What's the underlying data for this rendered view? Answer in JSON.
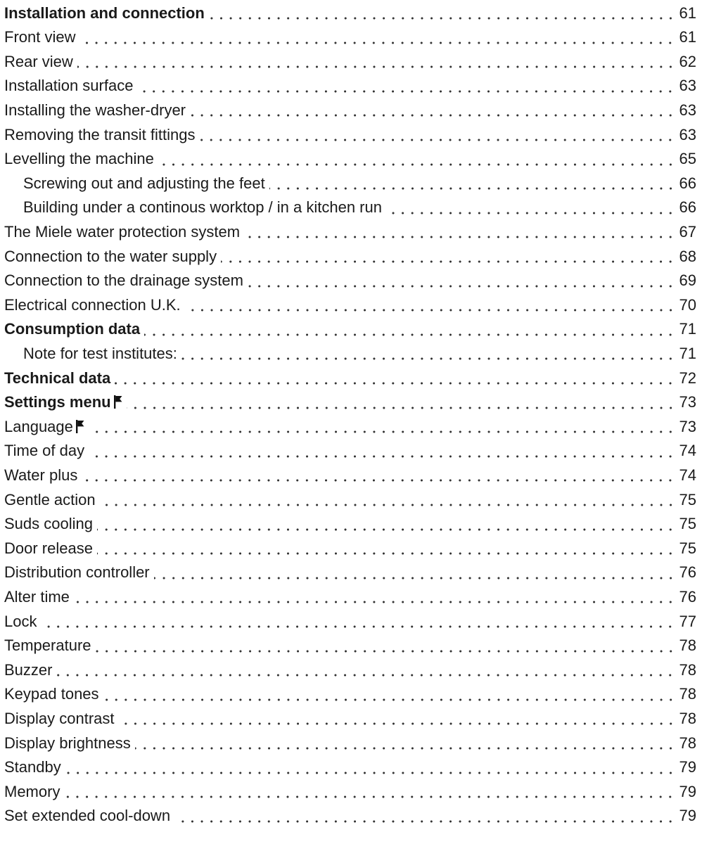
{
  "toc": {
    "entries": [
      {
        "title": "Installation and connection",
        "page": "61",
        "level": 1,
        "bold": true,
        "icon": null
      },
      {
        "title": "Front view",
        "page": "61",
        "level": 2,
        "bold": false,
        "icon": null
      },
      {
        "title": "Rear view",
        "page": "62",
        "level": 2,
        "bold": false,
        "icon": null
      },
      {
        "title": "Installation surface",
        "page": "63",
        "level": 2,
        "bold": false,
        "icon": null
      },
      {
        "title": "Installing the washer-dryer",
        "page": "63",
        "level": 2,
        "bold": false,
        "icon": null
      },
      {
        "title": "Removing the transit fittings",
        "page": "63",
        "level": 2,
        "bold": false,
        "icon": null
      },
      {
        "title": "Levelling the machine",
        "page": "65",
        "level": 2,
        "bold": false,
        "icon": null
      },
      {
        "title": "Screwing out and adjusting the feet",
        "page": "66",
        "level": 3,
        "bold": false,
        "icon": null
      },
      {
        "title": "Building under a continous worktop / in a kitchen run",
        "page": "66",
        "level": 3,
        "bold": false,
        "icon": null
      },
      {
        "title": "The Miele water protection system",
        "page": "67",
        "level": 2,
        "bold": false,
        "icon": null
      },
      {
        "title": "Connection to the water supply",
        "page": "68",
        "level": 2,
        "bold": false,
        "icon": null
      },
      {
        "title": "Connection to the drainage system",
        "page": "69",
        "level": 2,
        "bold": false,
        "icon": null
      },
      {
        "title": "Electrical connection U.K.",
        "page": "70",
        "level": 2,
        "bold": false,
        "icon": null
      },
      {
        "title": "Consumption data",
        "page": "71",
        "level": 1,
        "bold": true,
        "icon": null
      },
      {
        "title": "Note for test institutes:",
        "page": "71",
        "level": 3,
        "bold": false,
        "icon": null
      },
      {
        "title": "Technical data",
        "page": "72",
        "level": 1,
        "bold": true,
        "icon": null
      },
      {
        "title": "Settings menu",
        "page": "73",
        "level": 1,
        "bold": true,
        "icon": "flag-icon"
      },
      {
        "title": "Language",
        "page": "73",
        "level": 2,
        "bold": false,
        "icon": "flag-icon"
      },
      {
        "title": "Time of day",
        "page": "74",
        "level": 2,
        "bold": false,
        "icon": null
      },
      {
        "title": "Water plus",
        "page": "74",
        "level": 2,
        "bold": false,
        "icon": null
      },
      {
        "title": "Gentle action",
        "page": "75",
        "level": 2,
        "bold": false,
        "icon": null
      },
      {
        "title": "Suds cooling",
        "page": "75",
        "level": 2,
        "bold": false,
        "icon": null
      },
      {
        "title": "Door release",
        "page": "75",
        "level": 2,
        "bold": false,
        "icon": null
      },
      {
        "title": "Distribution controller",
        "page": "76",
        "level": 2,
        "bold": false,
        "icon": null
      },
      {
        "title": "Alter time",
        "page": "76",
        "level": 2,
        "bold": false,
        "icon": null
      },
      {
        "title": "Lock",
        "page": "77",
        "level": 2,
        "bold": false,
        "icon": null
      },
      {
        "title": "Temperature",
        "page": "78",
        "level": 2,
        "bold": false,
        "icon": null
      },
      {
        "title": "Buzzer",
        "page": "78",
        "level": 2,
        "bold": false,
        "icon": null
      },
      {
        "title": "Keypad tones",
        "page": "78",
        "level": 2,
        "bold": false,
        "icon": null
      },
      {
        "title": "Display contrast",
        "page": "78",
        "level": 2,
        "bold": false,
        "icon": null
      },
      {
        "title": "Display brightness",
        "page": "78",
        "level": 2,
        "bold": false,
        "icon": null
      },
      {
        "title": "Standby",
        "page": "79",
        "level": 2,
        "bold": false,
        "icon": null
      },
      {
        "title": "Memory",
        "page": "79",
        "level": 2,
        "bold": false,
        "icon": null
      },
      {
        "title": "Set extended cool-down",
        "page": "79",
        "level": 2,
        "bold": false,
        "icon": null
      }
    ]
  }
}
